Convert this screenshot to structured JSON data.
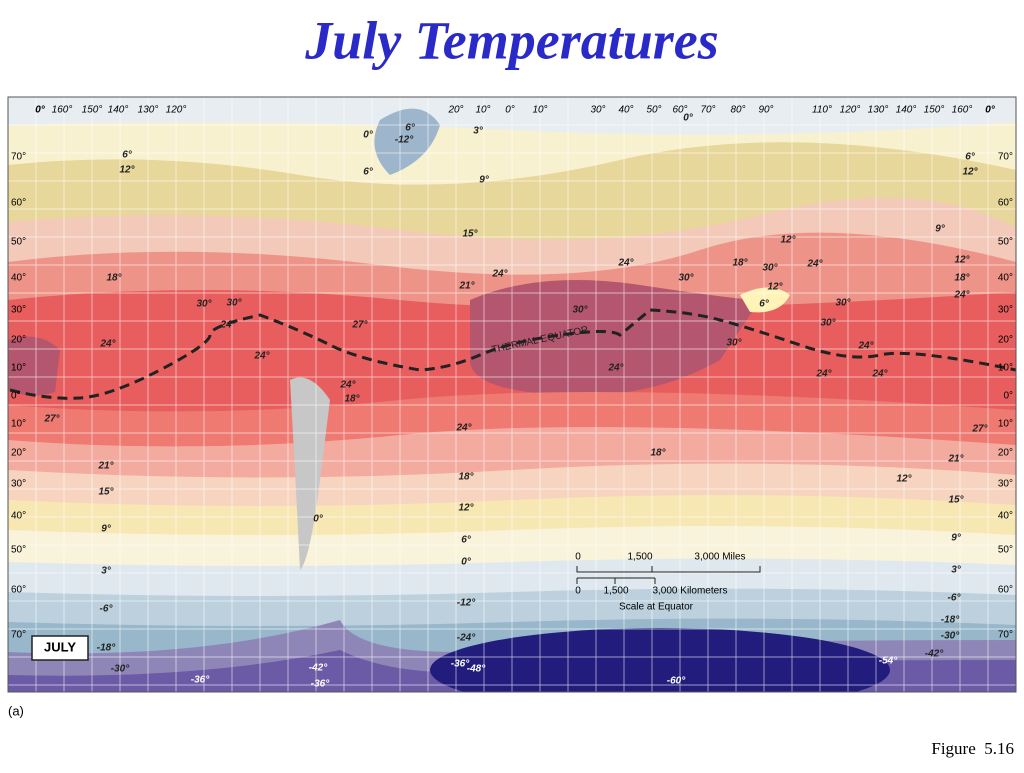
{
  "title": "July Temperatures",
  "map": {
    "longitude_labels": [
      "0°",
      "160°",
      "150°",
      "140°",
      "130°",
      "120°",
      "20°",
      "10°",
      "0°",
      "10°",
      "30°",
      "40°",
      "50°",
      "60°",
      "70°",
      "80°",
      "90°",
      "110°",
      "120°",
      "130°",
      "140°",
      "150°",
      "160°",
      "0°"
    ],
    "latitude_labels_left": [
      "70°",
      "60°",
      "50°",
      "40°",
      "30°",
      "20°",
      "10°",
      "0°",
      "10°",
      "20°",
      "30°",
      "40°",
      "50°",
      "60°",
      "70°"
    ],
    "latitude_labels_right": [
      "70°",
      "60°",
      "50°",
      "40°",
      "30°",
      "20°",
      "10°",
      "0°",
      "10°",
      "20°",
      "30°",
      "40°",
      "50°",
      "60°",
      "70°"
    ],
    "isotherm_labels": [
      "0°",
      "6°",
      "-12°",
      "6°",
      "3°",
      "0°",
      "6°",
      "12°",
      "9°",
      "15°",
      "18°",
      "21°",
      "24°",
      "24°",
      "18°",
      "30°",
      "24°",
      "12°",
      "12°",
      "6°",
      "30°",
      "30°",
      "30°",
      "30°",
      "24°",
      "27°",
      "24°",
      "24°",
      "30°",
      "30°",
      "30°",
      "24°",
      "24°",
      "24°",
      "24°",
      "18°",
      "24°",
      "27°",
      "24°",
      "27°",
      "21°",
      "18°",
      "21°",
      "15°",
      "18°",
      "12°",
      "12°",
      "15°",
      "9°",
      "0°",
      "6°",
      "9°",
      "3°",
      "0°",
      "3°",
      "-6°",
      "-12°",
      "-6°",
      "-18°",
      "-24°",
      "-18°",
      "-30°",
      "-30°",
      "-36°",
      "-42°",
      "-36°",
      "-36°",
      "-48°",
      "-60°",
      "-54°",
      "-42°",
      "12°",
      "18°",
      "24°",
      "9°",
      "6°",
      "12°"
    ],
    "thermal_equator_label": "THERMAL EQUATOR",
    "month_label": "JULY",
    "scale": {
      "miles": [
        "0",
        "1,500",
        "3,000 Miles"
      ],
      "kilometers": [
        "0",
        "1,500",
        "3,000 Kilometers"
      ],
      "note": "Scale at Equator"
    }
  },
  "panel_label": "(a)",
  "figure_label": "Figure  5.16"
}
